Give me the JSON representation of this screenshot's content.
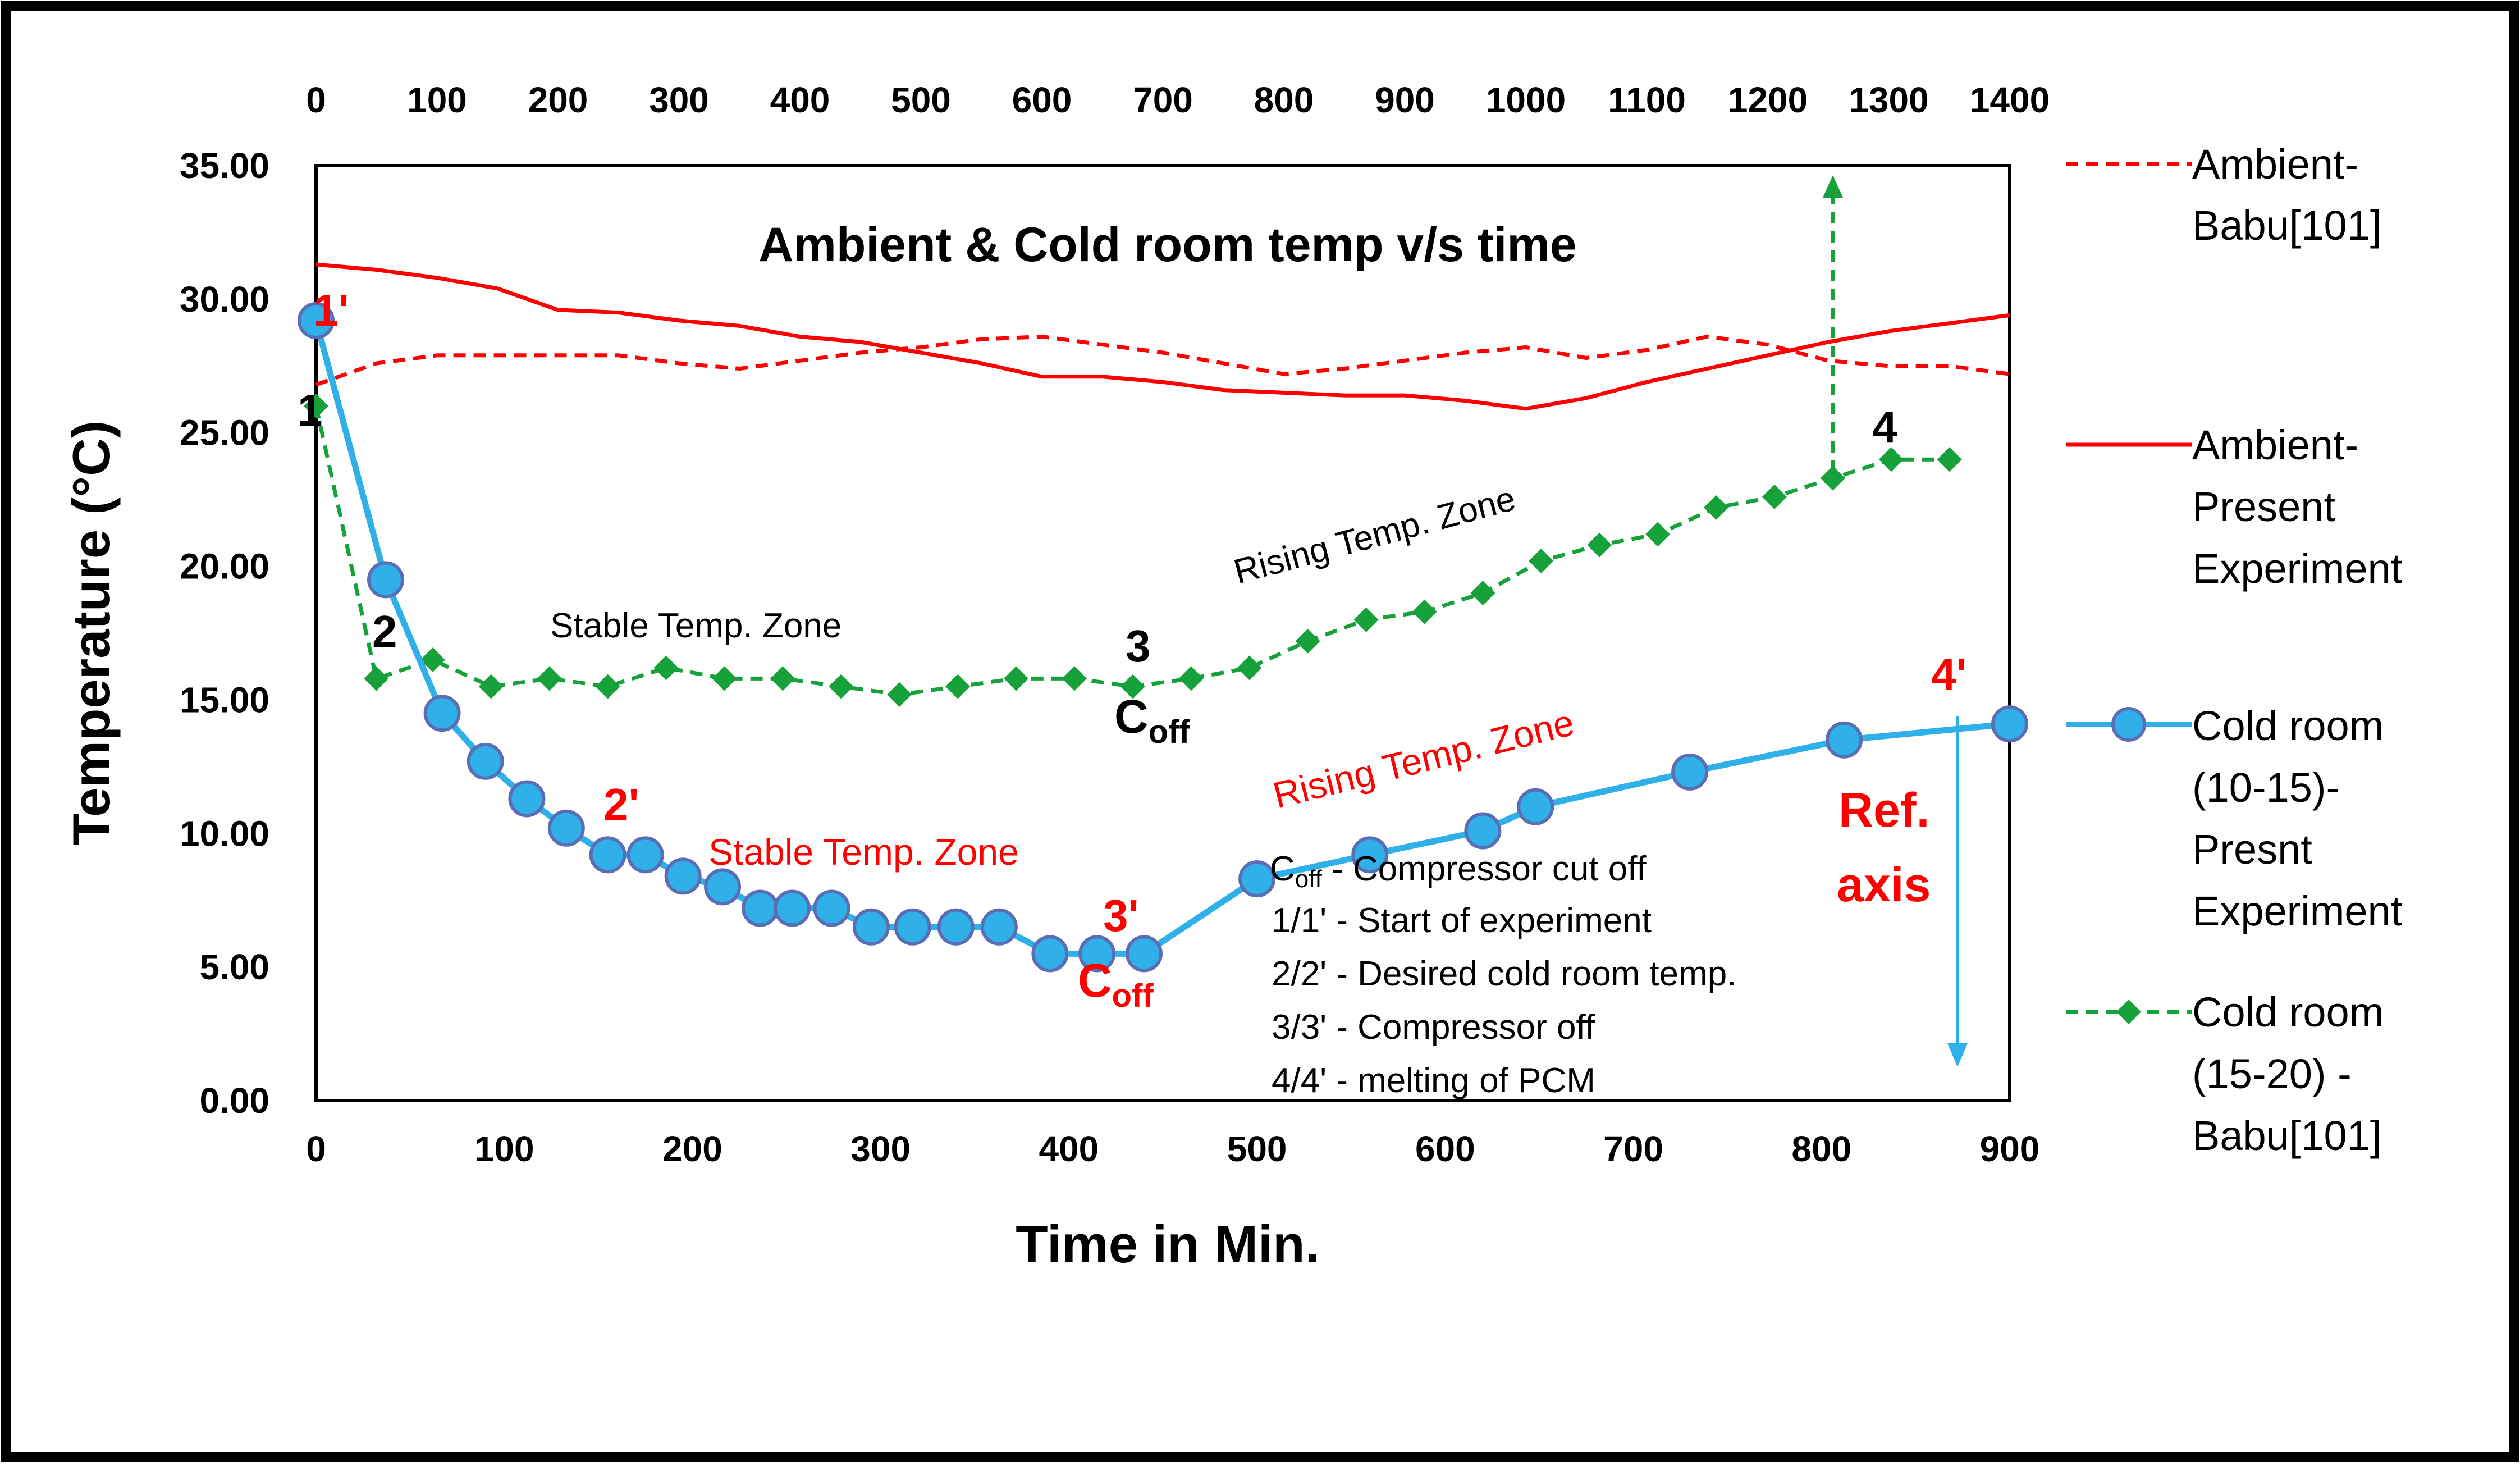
{
  "chart_data": {
    "type": "line",
    "title": "Ambient & Cold room temp v/s time",
    "xlabel": "Time in Min.",
    "ylabel": "Temperature  (°C)",
    "xlim": [
      0,
      900
    ],
    "x2lim": [
      0,
      1400
    ],
    "ylim": [
      0,
      35
    ],
    "x_ticks": [
      "0",
      "100",
      "200",
      "300",
      "400",
      "500",
      "600",
      "700",
      "800",
      "900"
    ],
    "x2_ticks": [
      "0",
      "100",
      "200",
      "300",
      "400",
      "500",
      "600",
      "700",
      "800",
      "900",
      "1000",
      "1100",
      "1200",
      "1300",
      "1400"
    ],
    "y_ticks": [
      "0.00",
      "5.00",
      "10.00",
      "15.00",
      "20.00",
      "25.00",
      "30.00",
      "35.00"
    ],
    "grid": false,
    "legend_position": "right",
    "series": [
      {
        "name": "Ambient-Babu[101]",
        "axis": "top",
        "style": "dashed",
        "color": "#ff0000",
        "marker": "none",
        "x": [
          0,
          50,
          100,
          150,
          200,
          250,
          300,
          350,
          400,
          450,
          500,
          550,
          600,
          650,
          700,
          750,
          800,
          850,
          900,
          950,
          1000,
          1050,
          1100,
          1150,
          1200,
          1250,
          1300,
          1350,
          1400
        ],
        "y": [
          26.8,
          27.6,
          27.9,
          27.9,
          27.9,
          27.9,
          27.6,
          27.4,
          27.7,
          28.0,
          28.2,
          28.5,
          28.6,
          28.3,
          28.0,
          27.6,
          27.2,
          27.4,
          27.7,
          28.0,
          28.2,
          27.8,
          28.1,
          28.6,
          28.3,
          27.7,
          27.5,
          27.5,
          27.2
        ]
      },
      {
        "name": "Ambient-Present Experiment",
        "axis": "top",
        "style": "solid",
        "color": "#ff0000",
        "marker": "none",
        "x": [
          0,
          50,
          100,
          150,
          200,
          250,
          300,
          350,
          400,
          450,
          500,
          550,
          600,
          650,
          700,
          750,
          800,
          850,
          900,
          950,
          1000,
          1050,
          1100,
          1150,
          1200,
          1250,
          1300,
          1350,
          1400
        ],
        "y": [
          31.3,
          31.1,
          30.8,
          30.4,
          29.6,
          29.5,
          29.2,
          29.0,
          28.6,
          28.4,
          28.0,
          27.6,
          27.1,
          27.1,
          26.9,
          26.6,
          26.5,
          26.4,
          26.4,
          26.2,
          25.9,
          26.3,
          26.9,
          27.4,
          27.9,
          28.4,
          28.8,
          29.1,
          29.4
        ]
      },
      {
        "name": "Cold room (10-15)-Presnt Experiment",
        "axis": "bottom",
        "style": "solid",
        "color": "#2fb0e8",
        "marker": "circle",
        "x": [
          0,
          37,
          67,
          90,
          112,
          133,
          155,
          175,
          195,
          216,
          236,
          253,
          274,
          295,
          317,
          340,
          363,
          390,
          415,
          440,
          500,
          560,
          620,
          648,
          730,
          812,
          900
        ],
        "y": [
          29.2,
          19.5,
          14.5,
          12.7,
          11.3,
          10.2,
          9.2,
          9.2,
          8.4,
          8.0,
          7.2,
          7.2,
          7.2,
          6.5,
          6.5,
          6.5,
          6.5,
          5.5,
          5.5,
          5.5,
          8.3,
          9.2,
          10.1,
          11.0,
          12.3,
          13.5,
          14.1
        ]
      },
      {
        "name": "Cold room (15-20) -Babu[101]",
        "axis": "bottom",
        "style": "dashed",
        "color": "#17a13a",
        "marker": "diamond",
        "x": [
          0,
          32,
          62,
          93,
          124,
          155,
          186,
          217,
          248,
          279,
          310,
          341,
          372,
          403,
          434,
          465,
          496,
          527,
          558,
          589,
          620,
          651,
          682,
          713,
          744,
          775,
          806,
          837,
          868
        ],
        "y": [
          26.0,
          15.8,
          16.5,
          15.5,
          15.8,
          15.5,
          16.2,
          15.8,
          15.8,
          15.5,
          15.2,
          15.5,
          15.8,
          15.8,
          15.5,
          15.8,
          16.2,
          17.2,
          18.0,
          18.3,
          19.0,
          20.2,
          20.8,
          21.2,
          22.2,
          22.6,
          23.3,
          24.0,
          24.0
        ]
      }
    ],
    "annotations": {
      "stable_black": "Stable  Temp. Zone",
      "rising_black": "Rising  Temp. Zone",
      "stable_red": "Stable  Temp. Zone",
      "rising_red": "Rising  Temp. Zone",
      "ref_line1": "Ref.",
      "ref_line2": "axis",
      "p1": "1",
      "p2": "2",
      "p3": "3",
      "p4": "4",
      "p1r": "1'",
      "p2r": "2'",
      "p3r": "3'",
      "p4r": "4'",
      "coff_main": "C",
      "coff_sub": "off",
      "notes": [
        {
          "main": "C",
          "sub": "off",
          "rest": " - Compressor cut  off"
        },
        {
          "main": "1/1' - Start of experiment"
        },
        {
          "main": "2/2' - Desired cold room temp."
        },
        {
          "main": "3/3' - Compressor off"
        },
        {
          "main": "4/4' - melting of PCM"
        }
      ]
    }
  }
}
